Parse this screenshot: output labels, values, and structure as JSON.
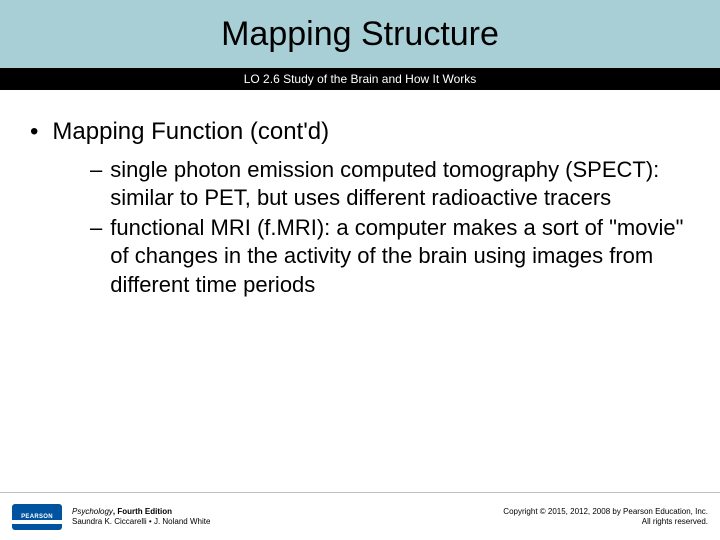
{
  "header": {
    "title": "Mapping Structure",
    "subtitle": "LO 2.6 Study of the Brain and How It Works",
    "title_bg": "#a8cfd6",
    "subtitle_bg": "#000000"
  },
  "content": {
    "main_bullet": "Mapping Function (cont'd)",
    "sub_items": [
      "single photon emission computed tomography (SPECT): similar to PET, but uses different radioactive tracers",
      "functional MRI (f.MRI): a computer makes a sort of \"movie\" of changes in the activity of the brain using images from different time periods"
    ]
  },
  "footer": {
    "logo_text": "PEARSON",
    "book_title": "Psychology",
    "edition": ", Fourth Edition",
    "authors": "Saundra K. Ciccarelli • J. Noland White",
    "copyright_line1": "Copyright © 2015, 2012, 2008 by Pearson Education, Inc.",
    "copyright_line2": "All rights reserved."
  }
}
